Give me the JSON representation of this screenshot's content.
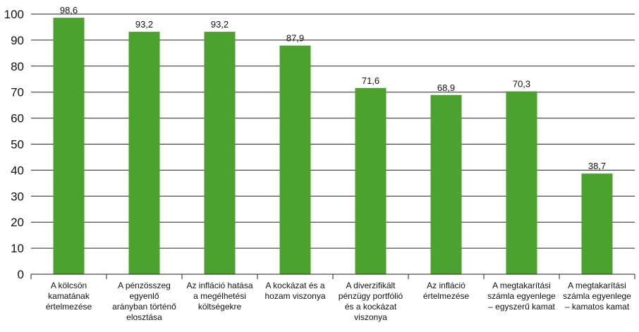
{
  "chart_data": {
    "type": "bar",
    "categories": [
      [
        "A kölcsön",
        "kamatának",
        "értelmezése"
      ],
      [
        "A pénzösszeg",
        "egyenlő",
        "arányban történő",
        "elosztása"
      ],
      [
        "Az infláció hatása",
        "a megélhetési",
        "költségekre"
      ],
      [
        "A kockázat és a",
        "hozam viszonya"
      ],
      [
        "A diverzifikált",
        "pénzügy portfólió",
        "és a kockázat",
        "viszonya"
      ],
      [
        "Az infláció",
        "értelmezése"
      ],
      [
        "A megtakarítási",
        "számla egyenlege",
        "– egyszerű kamat"
      ],
      [
        "A megtakarítási",
        "számla egyenlege",
        "– kamatos kamat"
      ]
    ],
    "values": [
      98.6,
      93.2,
      93.2,
      87.9,
      71.6,
      68.9,
      70.3,
      38.7
    ],
    "value_labels": [
      "98,6",
      "93,2",
      "93,2",
      "87,9",
      "71,6",
      "68,9",
      "70,3",
      "38,7"
    ],
    "yticks": [
      "0",
      "10",
      "20",
      "30",
      "40",
      "50",
      "60",
      "70",
      "80",
      "90",
      "100"
    ],
    "ylim": [
      0,
      100
    ],
    "bar_color": "#4ca22f",
    "grid": true,
    "title": "",
    "xlabel": "",
    "ylabel": ""
  }
}
